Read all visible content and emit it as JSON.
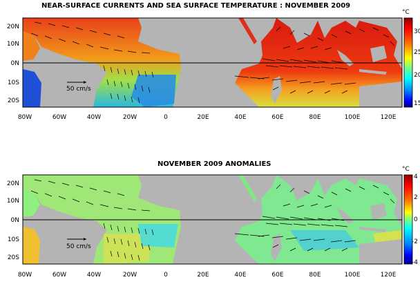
{
  "top_panel": {
    "title": "NEAR-SURFACE CURRENTS AND SEA SURFACE TEMPERATURE : NOVEMBER 2009",
    "scale_label": "50 cm/s",
    "colorbar": {
      "unit": "°C",
      "ticks": [
        "30",
        "25",
        "20",
        "15"
      ],
      "colors": [
        "#8b0000",
        "#ff0000",
        "#ff7f00",
        "#ffff00",
        "#7fff7f",
        "#00ffff",
        "#007fff",
        "#0000ff",
        "#00008b"
      ]
    }
  },
  "bottom_panel": {
    "title": "NOVEMBER 2009 ANOMALIES",
    "scale_label": "50 cm/s",
    "colorbar": {
      "unit": "°C",
      "ticks": [
        "4",
        "2",
        "0",
        "-2",
        "-4"
      ],
      "colors": [
        "#8b0000",
        "#ff0000",
        "#ff7f00",
        "#ffff00",
        "#7fff7f",
        "#00ffff",
        "#007fff",
        "#0000ff",
        "#00008b"
      ]
    }
  },
  "axes": {
    "x_ticks": [
      "80W",
      "60W",
      "40W",
      "20W",
      "0",
      "20E",
      "40E",
      "60E",
      "80E",
      "100E",
      "120E"
    ],
    "y_ticks": [
      "20N",
      "10N",
      "0N",
      "10S",
      "20S"
    ]
  },
  "colors": {
    "land": "#b4b4b4",
    "frame": "#000000"
  }
}
